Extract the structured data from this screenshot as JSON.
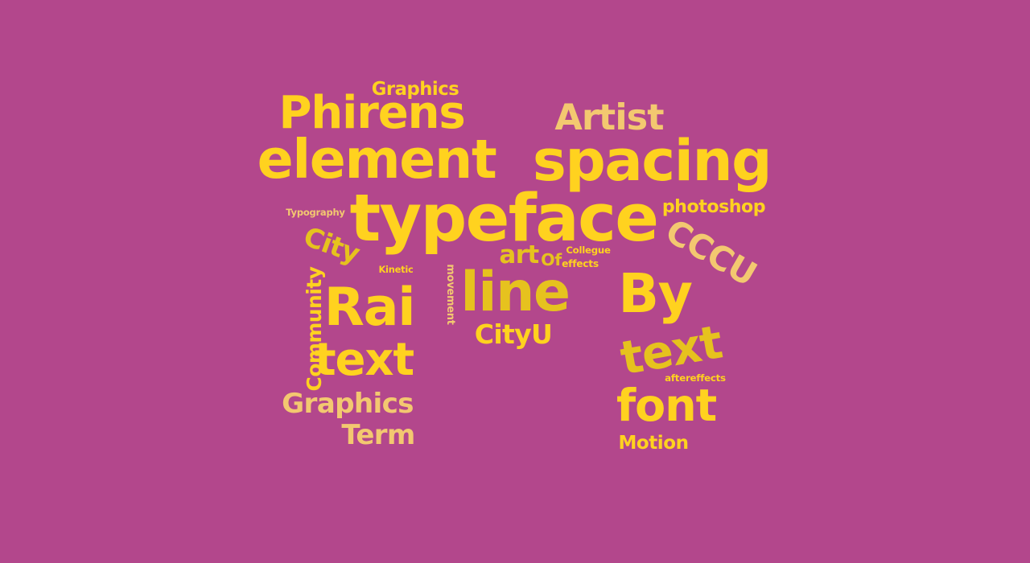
{
  "colors": {
    "background": "#b3478c",
    "yellow": "#ffd21f",
    "gold": "#e6c21e",
    "pale": "#f3c870"
  },
  "words": [
    {
      "text": "Graphics",
      "color": "#ffd21f"
    },
    {
      "text": "Phirens",
      "color": "#ffd21f"
    },
    {
      "text": "Artist",
      "color": "#f3c870"
    },
    {
      "text": "element",
      "color": "#ffd21f"
    },
    {
      "text": "spacing",
      "color": "#ffd21f"
    },
    {
      "text": "typeface",
      "color": "#ffd21f"
    },
    {
      "text": "photoshop",
      "color": "#ffd21f"
    },
    {
      "text": "Typography",
      "color": "#f3c870"
    },
    {
      "text": "City",
      "color": "#e6c21e"
    },
    {
      "text": "CCCU",
      "color": "#f3c870"
    },
    {
      "text": "art",
      "color": "#e6c21e"
    },
    {
      "text": "Of",
      "color": "#e6c21e"
    },
    {
      "text": "Collegue",
      "color": "#ffd21f"
    },
    {
      "text": "effects",
      "color": "#ffd21f"
    },
    {
      "text": "Kinetic",
      "color": "#ffd21f"
    },
    {
      "text": "Community",
      "color": "#ffd21f"
    },
    {
      "text": "movement",
      "color": "#f3c870"
    },
    {
      "text": "line",
      "color": "#e6c21e"
    },
    {
      "text": "Rai",
      "color": "#ffd21f"
    },
    {
      "text": "By",
      "color": "#ffd21f"
    },
    {
      "text": "CityU",
      "color": "#ffd21f"
    },
    {
      "text": "text",
      "color": "#ffd21f"
    },
    {
      "text": "text",
      "color": "#e6c21e"
    },
    {
      "text": "aftereffects",
      "color": "#ffd21f"
    },
    {
      "text": "Graphics",
      "color": "#f3c870"
    },
    {
      "text": "font",
      "color": "#ffd21f"
    },
    {
      "text": "Term",
      "color": "#f3c870"
    },
    {
      "text": "Motion",
      "color": "#ffd21f"
    }
  ]
}
